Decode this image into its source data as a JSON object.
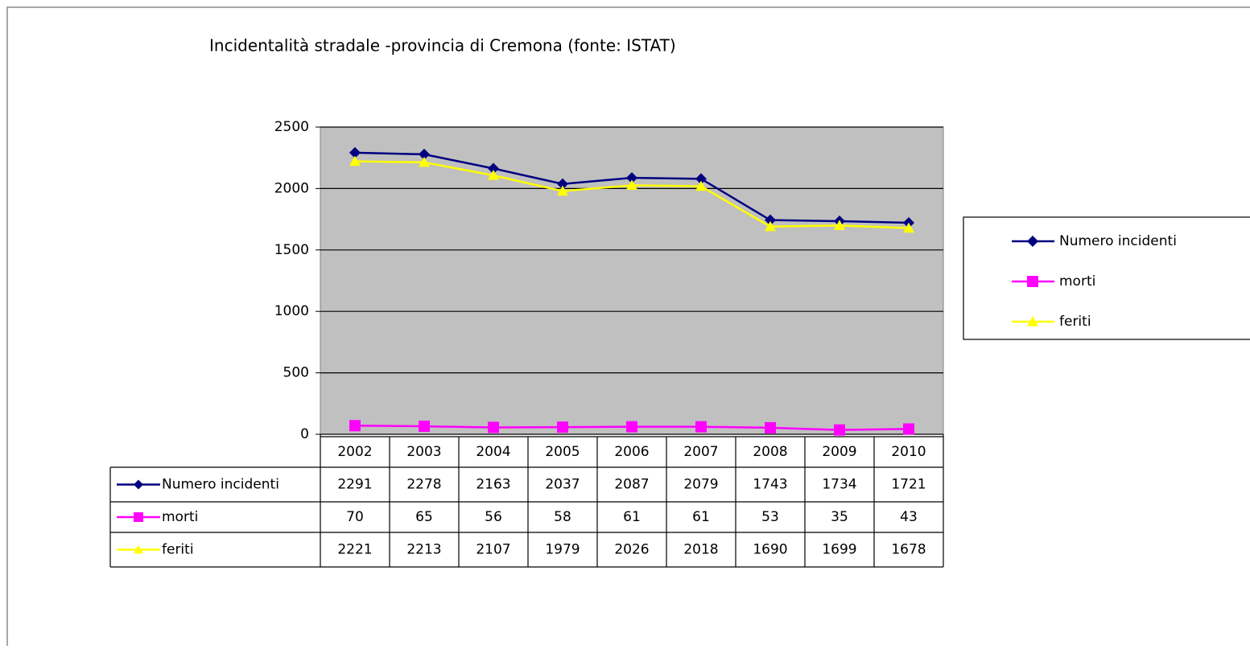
{
  "chart_data": {
    "type": "line",
    "title": "Incidentalità stradale -provincia di Cremona (fonte: ISTAT)",
    "categories": [
      "2002",
      "2003",
      "2004",
      "2005",
      "2006",
      "2007",
      "2008",
      "2009",
      "2010"
    ],
    "series": [
      {
        "name": "Numero incidenti",
        "color": "#000080",
        "marker": "diamond",
        "values": [
          2291,
          2278,
          2163,
          2037,
          2087,
          2079,
          1743,
          1734,
          1721
        ]
      },
      {
        "name": "morti",
        "color": "#ff00ff",
        "marker": "square",
        "values": [
          70,
          65,
          56,
          58,
          61,
          61,
          53,
          35,
          43
        ]
      },
      {
        "name": "feriti",
        "color": "#ffff00",
        "marker": "triangle",
        "values": [
          2221,
          2213,
          2107,
          1979,
          2026,
          2018,
          1690,
          1699,
          1678
        ]
      }
    ],
    "ylim": [
      0,
      2500
    ],
    "yticks": [
      0,
      500,
      1000,
      1500,
      2000,
      2500
    ],
    "grid": true,
    "legend": "right",
    "data_table": true,
    "plot_background": "#c0c0c0"
  }
}
